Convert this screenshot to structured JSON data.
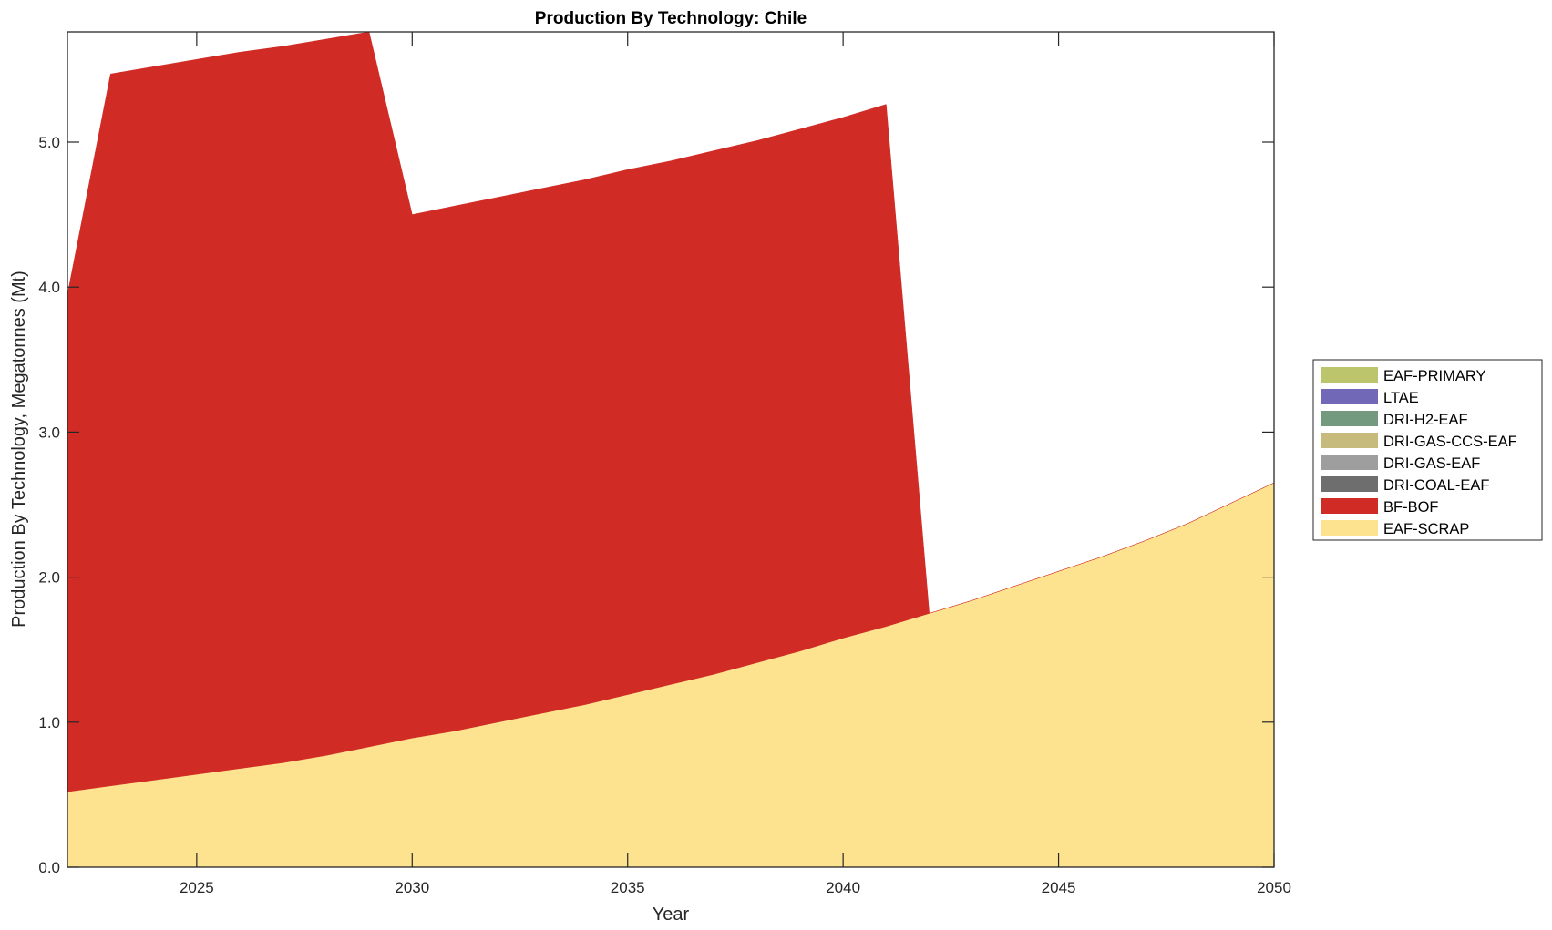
{
  "chart_data": {
    "type": "area",
    "stacked": true,
    "title": "Production By Technology: Chile",
    "xlabel": "Year",
    "ylabel": "Production By Technology, Megatonnes (Mt)",
    "xlim": [
      2022,
      2050
    ],
    "ylim": [
      0,
      5.76
    ],
    "xticks": [
      "2025",
      "2030",
      "2035",
      "2040",
      "2045",
      "2050"
    ],
    "yticks": [
      "0.0",
      "1.0",
      "2.0",
      "3.0",
      "4.0",
      "5.0"
    ],
    "legend_position": "right",
    "x": [
      2022,
      2023,
      2024,
      2025,
      2026,
      2027,
      2028,
      2029,
      2030,
      2031,
      2032,
      2033,
      2034,
      2035,
      2036,
      2037,
      2038,
      2039,
      2040,
      2041,
      2042,
      2043,
      2044,
      2045,
      2046,
      2047,
      2048,
      2049,
      2050
    ],
    "series": [
      {
        "name": "EAF-SCRAP",
        "color": "#fde390",
        "values": [
          0.52,
          0.56,
          0.6,
          0.64,
          0.68,
          0.72,
          0.77,
          0.83,
          0.89,
          0.94,
          1.0,
          1.06,
          1.12,
          1.19,
          1.26,
          1.33,
          1.41,
          1.49,
          1.58,
          1.66,
          1.75,
          1.84,
          1.94,
          2.04,
          2.14,
          2.25,
          2.37,
          2.51,
          2.65
        ]
      },
      {
        "name": "BF-BOF",
        "color": "#d12b25",
        "values": [
          3.43,
          4.91,
          4.92,
          4.93,
          4.94,
          4.94,
          4.94,
          4.93,
          3.61,
          3.62,
          3.62,
          3.62,
          3.62,
          3.62,
          3.61,
          3.61,
          3.6,
          3.6,
          3.59,
          3.6,
          0,
          0,
          0,
          0,
          0,
          0,
          0,
          0,
          0
        ]
      },
      {
        "name": "DRI-COAL-EAF",
        "color": "#6e6e6e",
        "values": [
          0,
          0,
          0,
          0,
          0,
          0,
          0,
          0,
          0,
          0,
          0,
          0,
          0,
          0,
          0,
          0,
          0,
          0,
          0,
          0,
          0,
          0,
          0,
          0,
          0,
          0,
          0,
          0,
          0
        ]
      },
      {
        "name": "DRI-GAS-EAF",
        "color": "#9e9e9e",
        "values": [
          0,
          0,
          0,
          0,
          0,
          0,
          0,
          0,
          0,
          0,
          0,
          0,
          0,
          0,
          0,
          0,
          0,
          0,
          0,
          0,
          0,
          0,
          0,
          0,
          0,
          0,
          0,
          0,
          0
        ]
      },
      {
        "name": "DRI-GAS-CCS-EAF",
        "color": "#c6bb7c",
        "values": [
          0,
          0,
          0,
          0,
          0,
          0,
          0,
          0,
          0,
          0,
          0,
          0,
          0,
          0,
          0,
          0,
          0,
          0,
          0,
          0,
          0,
          0,
          0,
          0,
          0,
          0,
          0,
          0,
          0
        ]
      },
      {
        "name": "DRI-H2-EAF",
        "color": "#739a7f",
        "values": [
          0,
          0,
          0,
          0,
          0,
          0,
          0,
          0,
          0,
          0,
          0,
          0,
          0,
          0,
          0,
          0,
          0,
          0,
          0,
          0,
          0,
          0,
          0,
          0,
          0,
          0,
          0,
          0,
          0
        ]
      },
      {
        "name": "LTAE",
        "color": "#7168b8",
        "values": [
          0,
          0,
          0,
          0,
          0,
          0,
          0,
          0,
          0,
          0,
          0,
          0,
          0,
          0,
          0,
          0,
          0,
          0,
          0,
          0,
          0,
          0,
          0,
          0,
          0,
          0,
          0,
          0,
          0
        ]
      },
      {
        "name": "EAF-PRIMARY",
        "color": "#bdc56c",
        "values": [
          0,
          0,
          0,
          0,
          0,
          0,
          0,
          0,
          0,
          0,
          0,
          0,
          0,
          0,
          0,
          0,
          0,
          0,
          0,
          0,
          0,
          0,
          0,
          0,
          0,
          0,
          0,
          0,
          0
        ]
      }
    ],
    "legend_order": [
      "EAF-PRIMARY",
      "LTAE",
      "DRI-H2-EAF",
      "DRI-GAS-CCS-EAF",
      "DRI-GAS-EAF",
      "DRI-COAL-EAF",
      "BF-BOF",
      "EAF-SCRAP"
    ]
  }
}
